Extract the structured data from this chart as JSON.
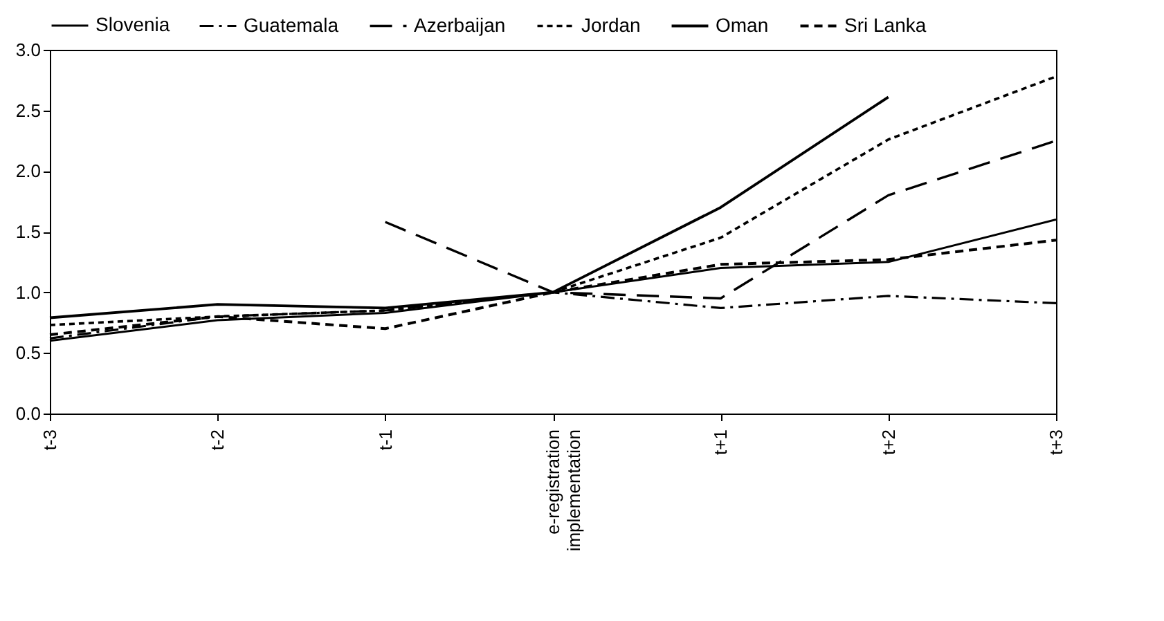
{
  "chart_data": {
    "type": "line",
    "categories": [
      "t-3",
      "t-2",
      "t-1",
      "e-registration implementation",
      "t+1",
      "t+2",
      "t+3"
    ],
    "series": [
      {
        "name": "Slovenia",
        "color": "#000000",
        "line_style": "solid",
        "values": [
          0.6,
          0.77,
          0.83,
          1.0,
          1.2,
          1.25,
          1.6
        ]
      },
      {
        "name": "Guatemala",
        "color": "#000000",
        "line_style": "dashdot",
        "values": [
          0.62,
          0.8,
          0.85,
          1.0,
          0.87,
          0.97,
          0.91
        ]
      },
      {
        "name": "Azerbaijan",
        "color": "#000000",
        "line_style": "longdash",
        "values": [
          null,
          null,
          1.58,
          1.0,
          0.95,
          1.8,
          2.25
        ]
      },
      {
        "name": "Jordan",
        "color": "#000000",
        "line_style": "dotted",
        "values": [
          0.73,
          0.8,
          0.85,
          1.0,
          1.45,
          2.26,
          2.78
        ]
      },
      {
        "name": "Oman",
        "color": "#000000",
        "line_style": "solid",
        "values": [
          0.79,
          0.9,
          0.87,
          1.0,
          1.7,
          2.61,
          null
        ]
      },
      {
        "name": "Sri Lanka",
        "color": "#000000",
        "line_style": "dashed",
        "values": [
          0.65,
          0.8,
          0.7,
          1.0,
          1.23,
          1.27,
          1.43
        ]
      }
    ],
    "ylim": [
      0,
      3
    ],
    "yticks": [
      {
        "value": 0,
        "label": "0.0"
      },
      0.5,
      {
        "value": 1,
        "label": "1.0"
      },
      1.5,
      {
        "value": 2,
        "label": "2.0"
      },
      2.5,
      {
        "value": 3,
        "label": "3.0"
      }
    ],
    "grid": false,
    "legend": "top",
    "marker": "none"
  }
}
